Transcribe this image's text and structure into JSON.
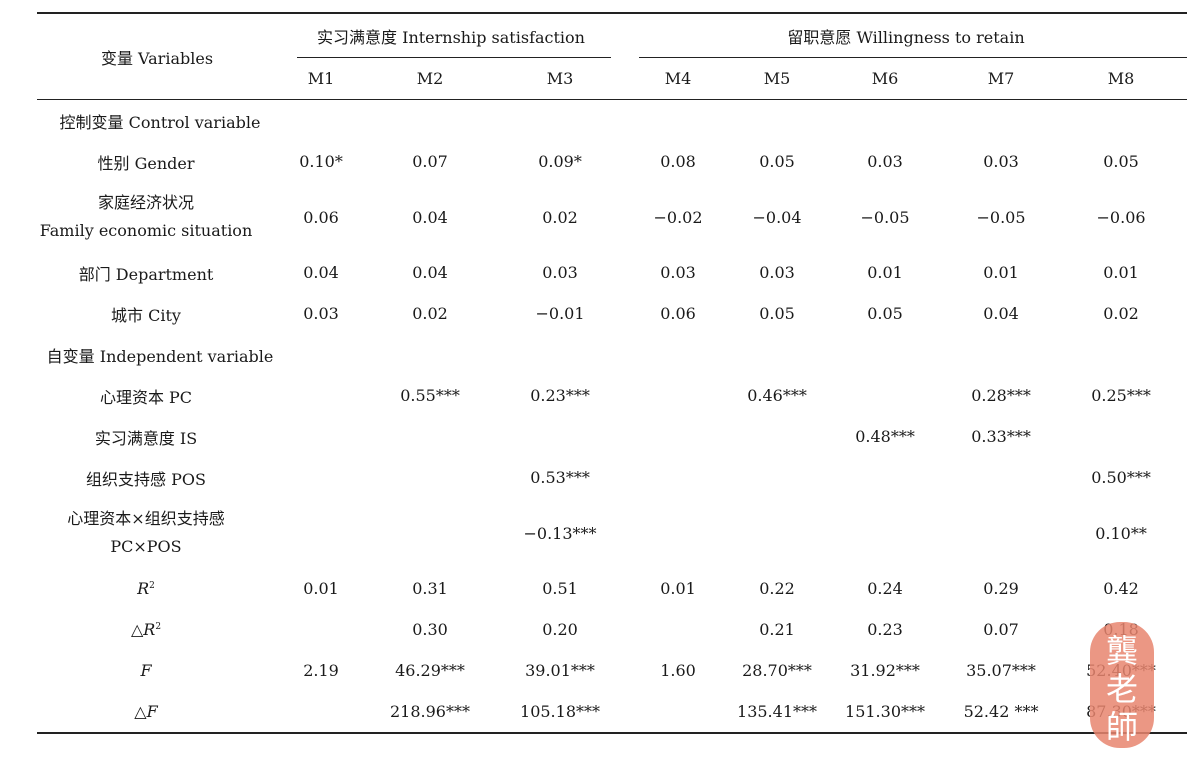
{
  "header": {
    "variables": "变量 Variables",
    "group1": "实习满意度 Internship satisfaction",
    "group2": "留职意愿 Willingness to retain",
    "models": [
      "M1",
      "M2",
      "M3",
      "M4",
      "M5",
      "M6",
      "M7",
      "M8"
    ]
  },
  "rows": [
    {
      "label": "控制变量 Control variable",
      "section": true,
      "values": [
        "",
        "",
        "",
        "",
        "",
        "",
        "",
        ""
      ]
    },
    {
      "label": "性别 Gender",
      "values": [
        "0.10*",
        "0.07",
        "0.09*",
        "0.08",
        "0.05",
        "0.03",
        "0.03",
        "0.05"
      ]
    },
    {
      "label": "家庭经济状况",
      "label2": "Family economic situation",
      "values": [
        "0.06",
        "0.04",
        "0.02",
        "−0.02",
        "−0.04",
        "−0.05",
        "−0.05",
        "−0.06"
      ]
    },
    {
      "label": "部门 Department",
      "values": [
        "0.04",
        "0.04",
        "0.03",
        "0.03",
        "0.03",
        "0.01",
        "0.01",
        "0.01"
      ]
    },
    {
      "label": "城市 City",
      "values": [
        "0.03",
        "0.02",
        "−0.01",
        "0.06",
        "0.05",
        "0.05",
        "0.04",
        "0.02"
      ]
    },
    {
      "label": "自变量 Independent variable",
      "section": true,
      "values": [
        "",
        "",
        "",
        "",
        "",
        "",
        "",
        ""
      ]
    },
    {
      "label": "心理资本 PC",
      "values": [
        "",
        "0.55***",
        "0.23***",
        "",
        "0.46***",
        "",
        "0.28***",
        "0.25***"
      ]
    },
    {
      "label": "实习满意度 IS",
      "values": [
        "",
        "",
        "",
        "",
        "",
        "0.48***",
        "0.33***",
        ""
      ]
    },
    {
      "label": "组织支持感 POS",
      "values": [
        "",
        "",
        "0.53***",
        "",
        "",
        "",
        "",
        "0.50***"
      ]
    },
    {
      "label": "心理资本×组织支持感",
      "label2": "PC×POS",
      "values": [
        "",
        "",
        "−0.13***",
        "",
        "",
        "",
        "",
        "0.10**"
      ]
    },
    {
      "label": "R",
      "sup": "2",
      "italic": true,
      "values": [
        "0.01",
        "0.31",
        "0.51",
        "0.01",
        "0.22",
        "0.24",
        "0.29",
        "0.42"
      ]
    },
    {
      "label": "△R",
      "sup": "2",
      "italic": true,
      "values": [
        "",
        "0.30",
        "0.20",
        "",
        "0.21",
        "0.23",
        "0.07",
        "0.18"
      ]
    },
    {
      "label": "F",
      "italic": true,
      "values": [
        "2.19",
        "46.29***",
        "39.01***",
        "1.60",
        "28.70***",
        "31.92***",
        "35.07***",
        "52.40***"
      ]
    },
    {
      "label": "△F",
      "italic": true,
      "values": [
        "",
        "218.96***",
        "105.18***",
        "",
        "135.41***",
        "151.30***",
        "52.42 ***",
        "87.30***"
      ]
    }
  ],
  "stamp": {
    "chars": [
      "龔",
      "老",
      "師"
    ],
    "color": "#e8856f"
  }
}
